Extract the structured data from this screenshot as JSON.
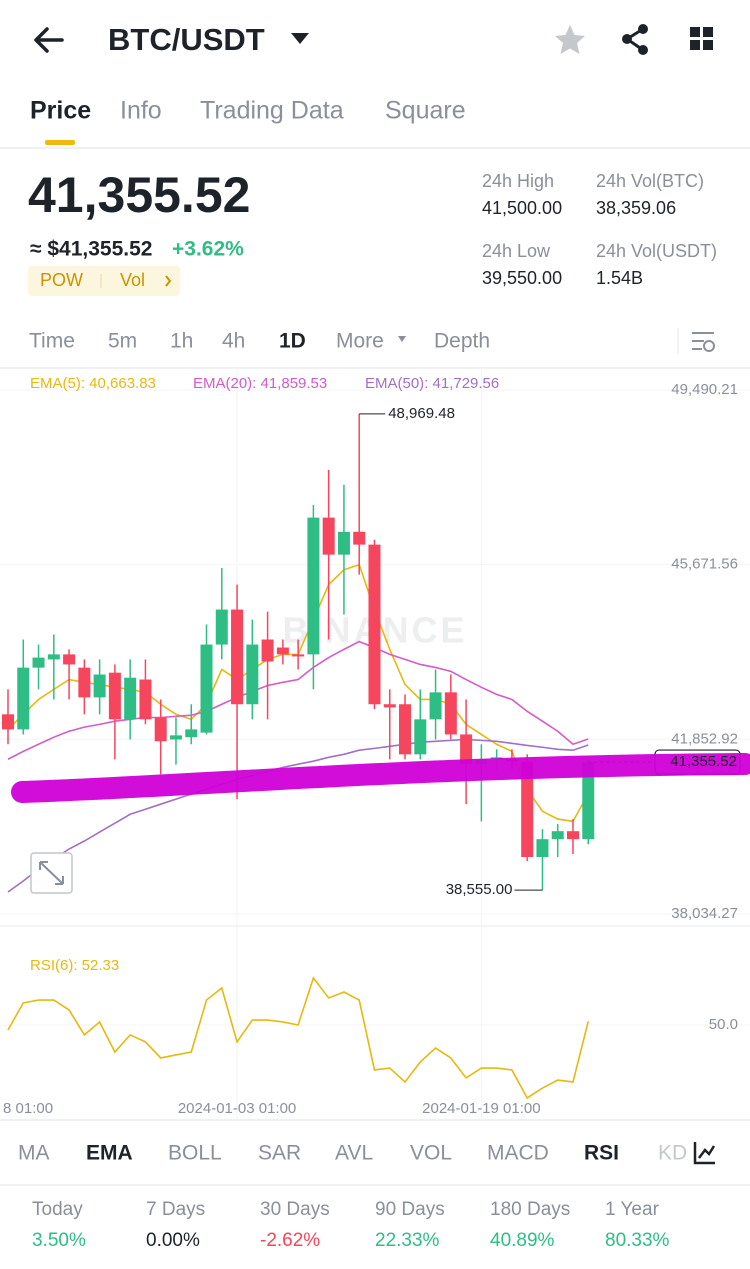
{
  "header": {
    "title": "BTC/USDT"
  },
  "tabs": [
    "Price",
    "Info",
    "Trading Data",
    "Square"
  ],
  "price": {
    "last": "41,355.52",
    "fiat": "≈ $41,355.52",
    "change": "+3.62%",
    "tags": [
      "POW",
      "Vol"
    ]
  },
  "stats": [
    {
      "label": "24h High",
      "value": "41,500.00"
    },
    {
      "label": "24h Vol(BTC)",
      "value": "38,359.06"
    },
    {
      "label": "24h Low",
      "value": "39,550.00"
    },
    {
      "label": "24h Vol(USDT)",
      "value": "1.54B"
    }
  ],
  "intervals": [
    "Time",
    "5m",
    "1h",
    "4h",
    "1D",
    "More",
    "Depth"
  ],
  "chart_data": [
    {
      "type": "candlestick",
      "watermark": "BINANCE",
      "up_color": "#2ebd85",
      "down_color": "#f6465d",
      "open": [
        42400,
        42070,
        43420,
        43600,
        43710,
        43420,
        42770,
        43310,
        42290,
        43160,
        42330,
        41850,
        41900,
        42000,
        43925,
        44690,
        42620,
        44035,
        43860,
        43710,
        43710,
        46700,
        45890,
        46390,
        46110,
        42620,
        42620,
        41525,
        42290,
        42880,
        41960,
        41310,
        41415,
        41415,
        41370,
        39280,
        39670,
        39845,
        39670
      ],
      "high": [
        42945,
        44035,
        43925,
        44145,
        43820,
        43600,
        43600,
        43490,
        43600,
        43600,
        42725,
        42330,
        42620,
        44365,
        45600,
        45235,
        44470,
        44645,
        44035,
        44035,
        46980,
        47745,
        47420,
        48969.48,
        46215,
        42945,
        42835,
        42945,
        43380,
        43270,
        42725,
        41745,
        41635,
        41635,
        41525,
        39890,
        40000,
        40110,
        41400
      ],
      "low": [
        41745,
        41960,
        42945,
        42725,
        42725,
        42400,
        42400,
        41415,
        41850,
        42180,
        41090,
        41300,
        41745,
        41960,
        43600,
        40545,
        42290,
        42290,
        43490,
        43380,
        42945,
        44035,
        44580,
        45455,
        42510,
        41415,
        41415,
        41415,
        41850,
        41850,
        40435,
        40060,
        41200,
        41200,
        39190,
        38555,
        39280,
        39345,
        39560
      ],
      "close": [
        42070,
        43420,
        43640,
        43710,
        43490,
        42770,
        43270,
        42290,
        43200,
        42290,
        41810,
        41940,
        42070,
        43925,
        44690,
        42620,
        43925,
        43555,
        43710,
        43665,
        46700,
        45890,
        46390,
        46110,
        42620,
        42550,
        41525,
        42290,
        42880,
        41960,
        41310,
        41415,
        41460,
        41370,
        39280,
        39670,
        39845,
        39670,
        41355.52
      ],
      "high_label": "48,969.48",
      "low_label": "38,555.00",
      "last_price_label": "41,355.52",
      "ylim": [
        38034.27,
        49490.21
      ],
      "yticks": [
        {
          "value": 38034.27,
          "label": "38,034.27"
        },
        {
          "value": 41852.92,
          "label": "41,852.92"
        },
        {
          "value": 45671.56,
          "label": "45,671.56"
        },
        {
          "value": 49490.21,
          "label": "49,490.21"
        }
      ],
      "x_labels": [
        "8 01:00",
        "2024-01-03 01:00",
        "2024-01-19 01:00"
      ],
      "series": [
        {
          "name": "EMA(5): 40,663.83",
          "color": "#e6b90f",
          "values": [
            42070,
            42400,
            42725,
            42945,
            43160,
            43100,
            43050,
            42990,
            42945,
            42880,
            42620,
            42400,
            42290,
            42620,
            43380,
            43160,
            43380,
            43600,
            43710,
            43710,
            44470,
            45235,
            45560,
            45670,
            44690,
            43820,
            43050,
            42725,
            42725,
            42620,
            42180,
            41960,
            41745,
            41590,
            40760,
            40280,
            40110,
            40060,
            40663.83
          ]
        },
        {
          "name": "EMA(20): 41,859.53",
          "color": "#d45bc9",
          "values": [
            41417,
            41590,
            41745,
            41900,
            42030,
            42120,
            42180,
            42250,
            42290,
            42330,
            42330,
            42355,
            42380,
            42465,
            42620,
            42770,
            42900,
            43030,
            43100,
            43160,
            43425,
            43640,
            43820,
            43990,
            43860,
            43710,
            43600,
            43490,
            43425,
            43340,
            43160,
            42990,
            42835,
            42725,
            42465,
            42250,
            42030,
            41745,
            41859.53
          ]
        },
        {
          "name": "EMA(50): 41,729.56",
          "color": "#a070c8",
          "values": [
            38515,
            38755,
            39015,
            39235,
            39455,
            39630,
            39825,
            40020,
            40215,
            40325,
            40435,
            40545,
            40655,
            40760,
            40870,
            40980,
            41065,
            41155,
            41240,
            41310,
            41375,
            41460,
            41525,
            41615,
            41655,
            41700,
            41745,
            41790,
            41810,
            41830,
            41850,
            41830,
            41810,
            41765,
            41720,
            41680,
            41635,
            41615,
            41729.56
          ]
        }
      ]
    },
    {
      "type": "line",
      "series": [
        {
          "name": "RSI(6): 52.33",
          "color": "#e6b90f",
          "values": [
            46.9,
            63.8,
            65.6,
            65.6,
            59.4,
            43.8,
            51.9,
            33.1,
            43.8,
            39.4,
            29.4,
            31.3,
            33.1,
            65.6,
            73.1,
            39.4,
            53.1,
            53.1,
            51.9,
            50.0,
            79.4,
            66.9,
            70.6,
            65.6,
            21.9,
            23.1,
            14.4,
            26.9,
            35.6,
            29.4,
            16.9,
            23.1,
            23.1,
            21.9,
            4.4,
            10.6,
            15.6,
            14.4,
            52.33
          ]
        }
      ],
      "ylim": [
        0,
        100
      ],
      "yticks": [
        {
          "value": 50,
          "label": "50.0"
        }
      ]
    }
  ],
  "indicators": [
    "MA",
    "EMA",
    "BOLL",
    "SAR",
    "AVL",
    "VOL",
    "MACD",
    "RSI",
    "KD"
  ],
  "performance": [
    {
      "label": "Today",
      "value": "3.50%"
    },
    {
      "label": "7 Days",
      "value": "0.00%"
    },
    {
      "label": "30 Days",
      "value": "-2.62%"
    },
    {
      "label": "90 Days",
      "value": "22.33%"
    },
    {
      "label": "180 Days",
      "value": "40.89%"
    },
    {
      "label": "1 Year",
      "value": "80.33%"
    }
  ]
}
